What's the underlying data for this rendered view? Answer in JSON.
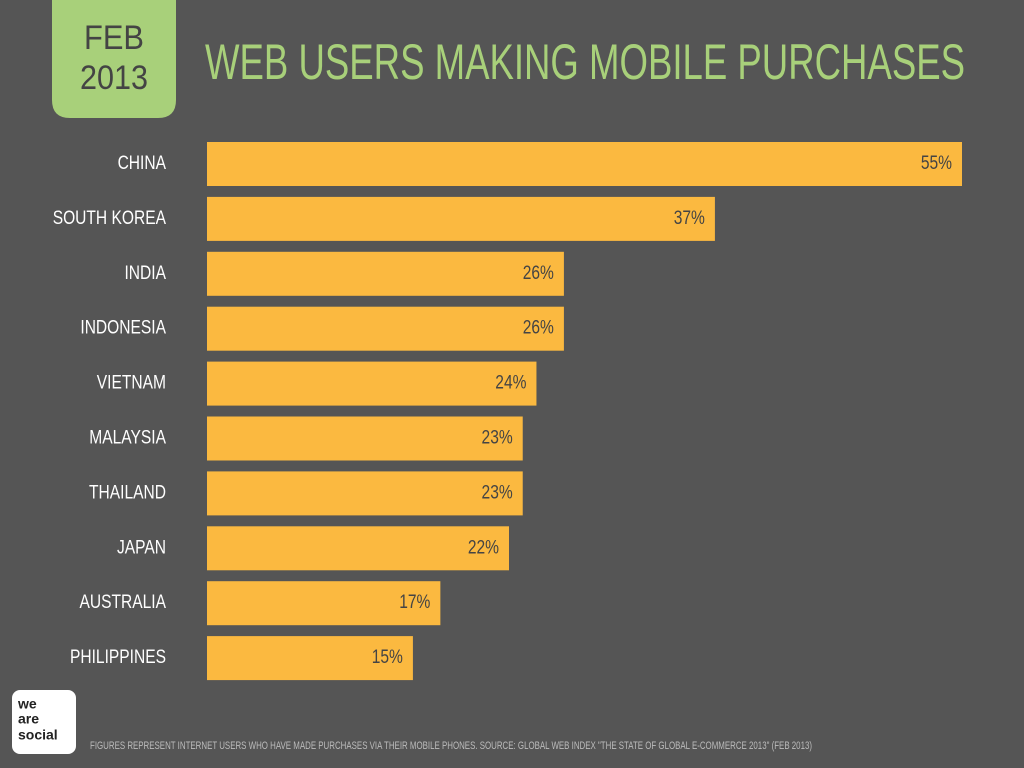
{
  "chart_data": {
    "type": "bar",
    "orientation": "horizontal",
    "badge": [
      "FEB",
      "2013"
    ],
    "title": "WEB USERS MAKING MOBILE PURCHASES",
    "categories": [
      "CHINA",
      "SOUTH KOREA",
      "INDIA",
      "INDONESIA",
      "VIETNAM",
      "MALAYSIA",
      "THAILAND",
      "JAPAN",
      "AUSTRALIA",
      "PHILIPPINES"
    ],
    "values": [
      55,
      37,
      26,
      26,
      24,
      23,
      23,
      22,
      17,
      15
    ],
    "value_labels": [
      "55%",
      "37%",
      "26%",
      "26%",
      "24%",
      "23%",
      "23%",
      "22%",
      "17%",
      "15%"
    ],
    "color": "#fbb940",
    "footnote": "FIGURES REPRESENT INTERNET USERS WHO HAVE MADE PURCHASES VIA THEIR MOBILE PHONES. SOURCE: GLOBAL WEB INDEX \"THE STATE OF GLOBAL E-COMMERCE 2013\" (FEB 2013)",
    "logo": [
      "we",
      "are",
      "social"
    ]
  }
}
